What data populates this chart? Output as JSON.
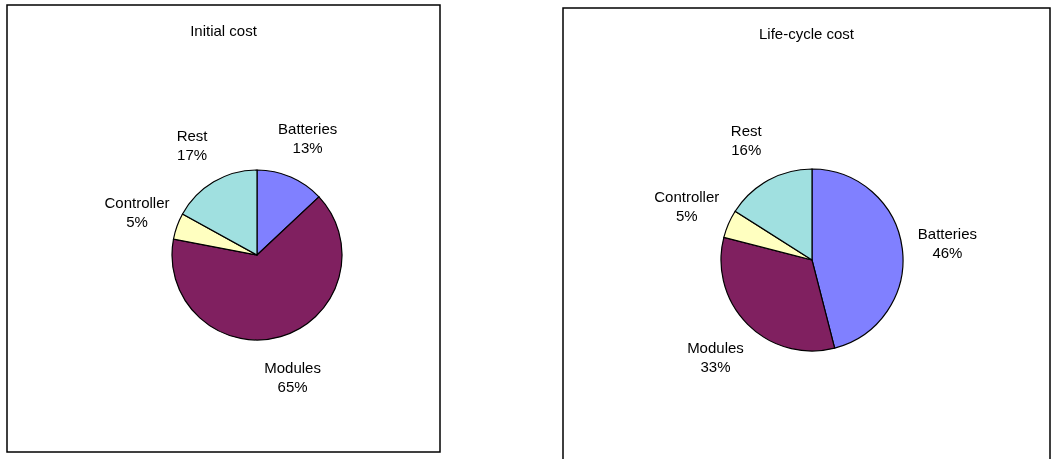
{
  "chart_data": [
    {
      "type": "pie",
      "title": "Initial cost",
      "categories": [
        "Batteries",
        "Modules",
        "Controller",
        "Rest"
      ],
      "values": [
        13,
        65,
        5,
        17
      ],
      "colors": [
        "#8080ff",
        "#802060",
        "#ffffc0",
        "#a0e0e0"
      ],
      "value_labels": [
        "13%",
        "65%",
        "5%",
        "17%"
      ]
    },
    {
      "type": "pie",
      "title": "Life-cycle cost",
      "categories": [
        "Batteries",
        "Modules",
        "Controller",
        "Rest"
      ],
      "values": [
        46,
        33,
        5,
        16
      ],
      "colors": [
        "#8080ff",
        "#802060",
        "#ffffc0",
        "#a0e0e0"
      ],
      "value_labels": [
        "46%",
        "33%",
        "5%",
        "16%"
      ]
    }
  ]
}
